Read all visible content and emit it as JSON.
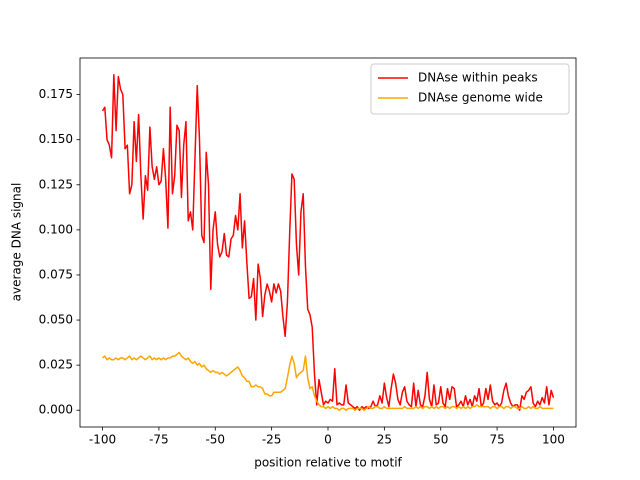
{
  "chart_data": {
    "type": "line",
    "xlabel": "position relative to motif",
    "ylabel": "average DNA signal",
    "xlim": [
      -110,
      110
    ],
    "ylim": [
      -0.0093,
      0.1953
    ],
    "xticks": [
      -100,
      -75,
      -50,
      -25,
      0,
      25,
      50,
      75,
      100
    ],
    "yticks": [
      {
        "value": 0,
        "label": "0.000"
      },
      0.025,
      {
        "value": 0.05,
        "label": "0.050"
      },
      0.075,
      {
        "value": 0.1,
        "label": "0.100"
      },
      0.125,
      {
        "value": 0.15,
        "label": "0.150"
      },
      0.175
    ],
    "legend": "upper right",
    "x": [
      -100,
      -99,
      -98,
      -97,
      -96,
      -95,
      -94,
      -93,
      -92,
      -91,
      -90,
      -89,
      -88,
      -87,
      -86,
      -85,
      -84,
      -83,
      -82,
      -81,
      -80,
      -79,
      -78,
      -77,
      -76,
      -75,
      -74,
      -73,
      -72,
      -71,
      -70,
      -69,
      -68,
      -67,
      -66,
      -65,
      -64,
      -63,
      -62,
      -61,
      -60,
      -59,
      -58,
      -57,
      -56,
      -55,
      -54,
      -53,
      -52,
      -51,
      -50,
      -49,
      -48,
      -47,
      -46,
      -45,
      -44,
      -43,
      -42,
      -41,
      -40,
      -39,
      -38,
      -37,
      -36,
      -35,
      -34,
      -33,
      -32,
      -31,
      -30,
      -29,
      -28,
      -27,
      -26,
      -25,
      -24,
      -23,
      -22,
      -21,
      -20,
      -19,
      -18,
      -17,
      -16,
      -15,
      -14,
      -13,
      -12,
      -11,
      -10,
      -9,
      -8,
      -7,
      -6,
      -5,
      -4,
      -3,
      -2,
      -1,
      0,
      1,
      2,
      3,
      4,
      5,
      6,
      7,
      8,
      9,
      10,
      11,
      12,
      13,
      14,
      15,
      16,
      17,
      18,
      19,
      20,
      21,
      22,
      23,
      24,
      25,
      26,
      27,
      28,
      29,
      30,
      31,
      32,
      33,
      34,
      35,
      36,
      37,
      38,
      39,
      40,
      41,
      42,
      43,
      44,
      45,
      46,
      47,
      48,
      49,
      50,
      51,
      52,
      53,
      54,
      55,
      56,
      57,
      58,
      59,
      60,
      61,
      62,
      63,
      64,
      65,
      66,
      67,
      68,
      69,
      70,
      71,
      72,
      73,
      74,
      75,
      76,
      77,
      78,
      79,
      80,
      81,
      82,
      83,
      84,
      85,
      86,
      87,
      88,
      89,
      90,
      91,
      92,
      93,
      94,
      95,
      96,
      97,
      98,
      99,
      100
    ],
    "series": [
      {
        "name": "DNAse within peaks",
        "color": "#ff0000",
        "values": [
          0.166,
          0.168,
          0.15,
          0.147,
          0.14,
          0.186,
          0.155,
          0.185,
          0.178,
          0.175,
          0.145,
          0.147,
          0.12,
          0.125,
          0.16,
          0.138,
          0.164,
          0.13,
          0.106,
          0.13,
          0.122,
          0.157,
          0.135,
          0.128,
          0.135,
          0.125,
          0.127,
          0.145,
          0.128,
          0.101,
          0.168,
          0.12,
          0.13,
          0.158,
          0.155,
          0.118,
          0.147,
          0.16,
          0.105,
          0.11,
          0.1,
          0.14,
          0.18,
          0.15,
          0.097,
          0.093,
          0.143,
          0.125,
          0.067,
          0.1,
          0.11,
          0.092,
          0.085,
          0.088,
          0.098,
          0.086,
          0.085,
          0.095,
          0.097,
          0.108,
          0.1,
          0.12,
          0.09,
          0.105,
          0.082,
          0.062,
          0.063,
          0.073,
          0.05,
          0.081,
          0.073,
          0.052,
          0.064,
          0.07,
          0.066,
          0.06,
          0.07,
          0.065,
          0.07,
          0.066,
          0.052,
          0.041,
          0.06,
          0.098,
          0.131,
          0.128,
          0.092,
          0.075,
          0.11,
          0.12,
          0.08,
          0.056,
          0.053,
          0.046,
          0.02,
          0.003,
          0.017,
          0.01,
          0.003,
          0.005,
          0.004,
          0.006,
          0.005,
          0.023,
          0.003,
          0.004,
          0.003,
          0.003,
          0.014,
          0.004,
          0.003,
          0.002,
          0.001,
          0.002,
          0.0,
          0.002,
          0.001,
          0.002,
          0.001,
          0.002,
          0.005,
          0.002,
          0.003,
          0.008,
          0.004,
          0.015,
          0.007,
          0.002,
          0.012,
          0.02,
          0.015,
          0.006,
          0.003,
          0.01,
          0.013,
          0.005,
          0.003,
          0.002,
          0.015,
          0.002,
          0.011,
          0.003,
          0.002,
          0.008,
          0.021,
          0.006,
          0.002,
          0.014,
          0.003,
          0.004,
          0.013,
          0.004,
          0.002,
          0.012,
          0.006,
          0.013,
          0.012,
          0.002,
          0.003,
          0.005,
          0.002,
          0.008,
          0.003,
          0.006,
          0.002,
          0.008,
          0.005,
          0.012,
          0.002,
          0.004,
          0.012,
          0.006,
          0.014,
          0.005,
          0.003,
          0.004,
          0.002,
          0.004,
          0.011,
          0.015,
          0.008,
          0.004,
          0.002,
          0.003,
          0.003,
          0.0,
          0.008,
          0.006,
          0.01,
          0.011,
          0.013,
          0.004,
          0.002,
          0.005,
          0.003,
          0.007,
          0.004,
          0.013,
          0.003,
          0.011,
          0.007
        ]
      },
      {
        "name": "DNAse genome wide",
        "color": "#ffa500",
        "values": [
          0.029,
          0.03,
          0.028,
          0.029,
          0.028,
          0.028,
          0.029,
          0.028,
          0.029,
          0.029,
          0.028,
          0.029,
          0.03,
          0.028,
          0.029,
          0.028,
          0.029,
          0.03,
          0.029,
          0.028,
          0.029,
          0.03,
          0.028,
          0.029,
          0.028,
          0.029,
          0.028,
          0.029,
          0.028,
          0.029,
          0.029,
          0.03,
          0.03,
          0.031,
          0.032,
          0.03,
          0.029,
          0.028,
          0.029,
          0.027,
          0.026,
          0.027,
          0.025,
          0.026,
          0.024,
          0.025,
          0.023,
          0.022,
          0.021,
          0.022,
          0.021,
          0.021,
          0.02,
          0.021,
          0.02,
          0.019,
          0.02,
          0.021,
          0.022,
          0.023,
          0.024,
          0.022,
          0.019,
          0.018,
          0.016,
          0.016,
          0.013,
          0.013,
          0.014,
          0.013,
          0.013,
          0.012,
          0.009,
          0.009,
          0.008,
          0.008,
          0.01,
          0.01,
          0.01,
          0.01,
          0.011,
          0.012,
          0.018,
          0.025,
          0.03,
          0.026,
          0.018,
          0.02,
          0.021,
          0.022,
          0.03,
          0.018,
          0.012,
          0.013,
          0.008,
          0.005,
          0.003,
          0.002,
          0.002,
          0.001,
          0.002,
          0.001,
          0.002,
          0.001,
          0.001,
          0.0,
          0.001,
          0.001,
          0.0,
          0.001,
          0.001,
          0.001,
          0.0,
          0.001,
          0.001,
          0.001,
          0.0,
          0.001,
          0.002,
          0.001,
          0.001,
          0.002,
          0.002,
          0.001,
          0.001,
          0.002,
          0.001,
          0.001,
          0.001,
          0.001,
          0.001,
          0.001,
          0.001,
          0.001,
          0.002,
          0.001,
          0.001,
          0.001,
          0.001,
          0.002,
          0.001,
          0.002,
          0.001,
          0.002,
          0.002,
          0.001,
          0.002,
          0.001,
          0.002,
          0.001,
          0.002,
          0.002,
          0.001,
          0.002,
          0.001,
          0.002,
          0.002,
          0.001,
          0.002,
          0.001,
          0.002,
          0.001,
          0.002,
          0.001,
          0.002,
          0.002,
          0.003,
          0.002,
          0.002,
          0.002,
          0.002,
          0.002,
          0.001,
          0.002,
          0.002,
          0.001,
          0.002,
          0.002,
          0.001,
          0.002,
          0.002,
          0.001,
          0.002,
          0.002,
          0.001,
          0.001,
          0.002,
          0.001,
          0.001,
          0.002,
          0.001,
          0.002,
          0.001,
          0.001,
          0.002,
          0.001,
          0.001,
          0.001,
          0.001,
          0.001,
          0.001
        ]
      }
    ]
  }
}
